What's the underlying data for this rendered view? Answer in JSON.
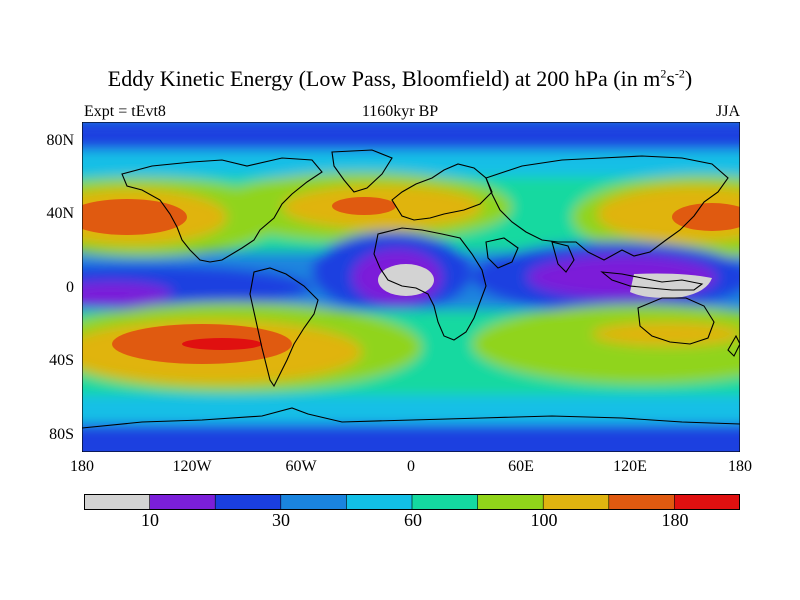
{
  "title": {
    "main": "Eddy Kinetic Energy (Low Pass, Bloomfield) at 200 hPa (in m",
    "sup1": "2",
    "mid": "s",
    "sup2": "-2",
    "end": ")"
  },
  "labels": {
    "left": "Expt = tEvt8",
    "center": "1160kyr BP",
    "right": "JJA"
  },
  "axes": {
    "y_ticks": [
      "80N",
      "40N",
      "0",
      "40S",
      "80S"
    ],
    "x_ticks": [
      "180",
      "120W",
      "60W",
      "0",
      "60E",
      "120E",
      "180"
    ]
  },
  "colorbar": {
    "colors": [
      "#d3d3d3",
      "#7b1fd9",
      "#1a3fe0",
      "#1a84de",
      "#12bfe6",
      "#14d9a0",
      "#90d41a",
      "#e0b410",
      "#e05a10",
      "#e01010"
    ],
    "labels": [
      "10",
      "30",
      "60",
      "100",
      "180"
    ]
  },
  "colors": {
    "ocean_bg": "#1a3fe0",
    "land_outline": "#000000"
  }
}
